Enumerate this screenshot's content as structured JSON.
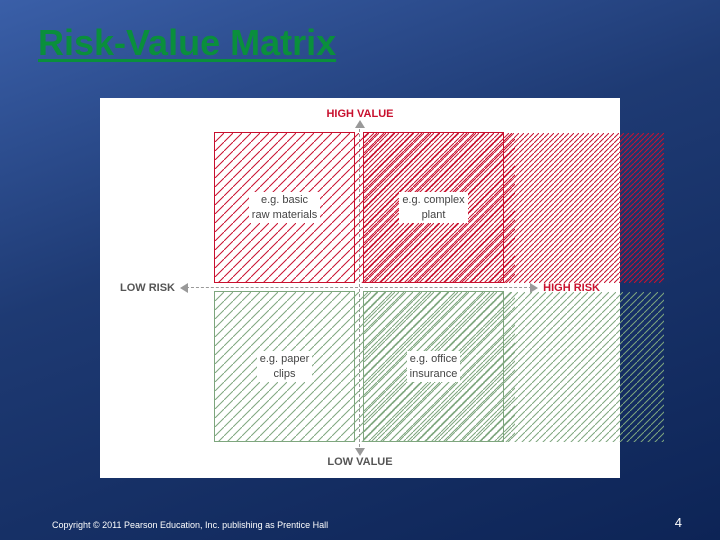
{
  "slide": {
    "title": "Risk-Value Matrix",
    "title_color": "#0a8f3c",
    "background_gradient_from": "#3a5fa8",
    "background_gradient_to": "#0d2456",
    "footer": "Copyright © 2011 Pearson Education, Inc. publishing as Prentice Hall",
    "page_number": "4"
  },
  "matrix": {
    "panel_bg": "#ffffff",
    "axis_top": {
      "text": "HIGH VALUE",
      "color": "#c8102e"
    },
    "axis_bottom": {
      "text": "LOW VALUE",
      "color": "#555555"
    },
    "axis_left": {
      "text": "LOW RISK",
      "color": "#555555"
    },
    "axis_right": {
      "text": "HIGH RISK",
      "color": "#c8102e"
    },
    "axis_line_color": "#999999",
    "quadrants": {
      "top_left": {
        "label_line1": "e.g. basic",
        "label_line2": "raw materials",
        "hatch_color": "#c8102e",
        "hatch_spacing": 9,
        "border_color": "#c8102e"
      },
      "top_right": {
        "label_line1": "e.g. complex",
        "label_line2": "plant",
        "hatch_color": "#c8102e",
        "hatch_spacing": 5,
        "border_color": "#c8102e"
      },
      "bottom_left": {
        "label_line1": "e.g. paper",
        "label_line2": "clips",
        "hatch_color": "#7ea67e",
        "hatch_spacing": 9,
        "border_color": "#7ea67e"
      },
      "bottom_right": {
        "label_line1": "e.g. office",
        "label_line2": "insurance",
        "hatch_color": "#7ea67e",
        "hatch_spacing": 7,
        "border_color": "#7ea67e"
      }
    }
  }
}
